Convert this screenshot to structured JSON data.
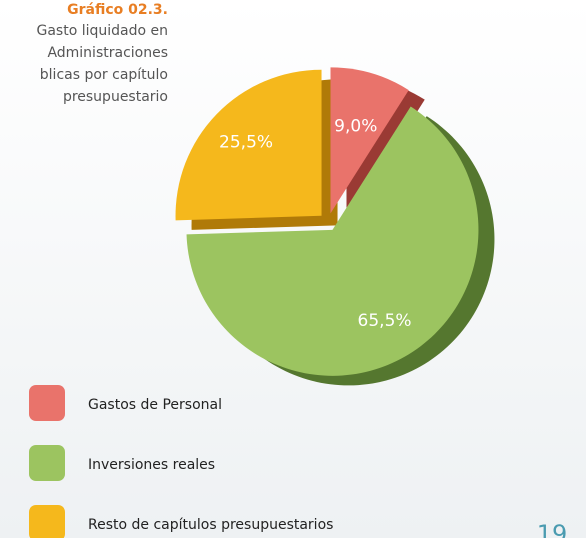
{
  "chart_data": {
    "type": "pie",
    "title": "Gráfico 02.3.",
    "subtitle_lines": [
      "Gasto liquidado en",
      "Administraciones",
      "blicas por capítulo",
      "presupuestario"
    ],
    "categories": [
      "Gastos de Personal",
      "Inversiones reales",
      "Resto de capítulos presupuestarios"
    ],
    "values": [
      9.0,
      65.5,
      25.5
    ],
    "value_labels": [
      "9,0%",
      "65,5%",
      "25,5%"
    ],
    "colors": [
      "#e9736b",
      "#9cc460",
      "#f5b81c"
    ],
    "shade_colors": [
      "#9a3a34",
      "#55772f",
      "#b07a08"
    ],
    "page_number": "19"
  }
}
